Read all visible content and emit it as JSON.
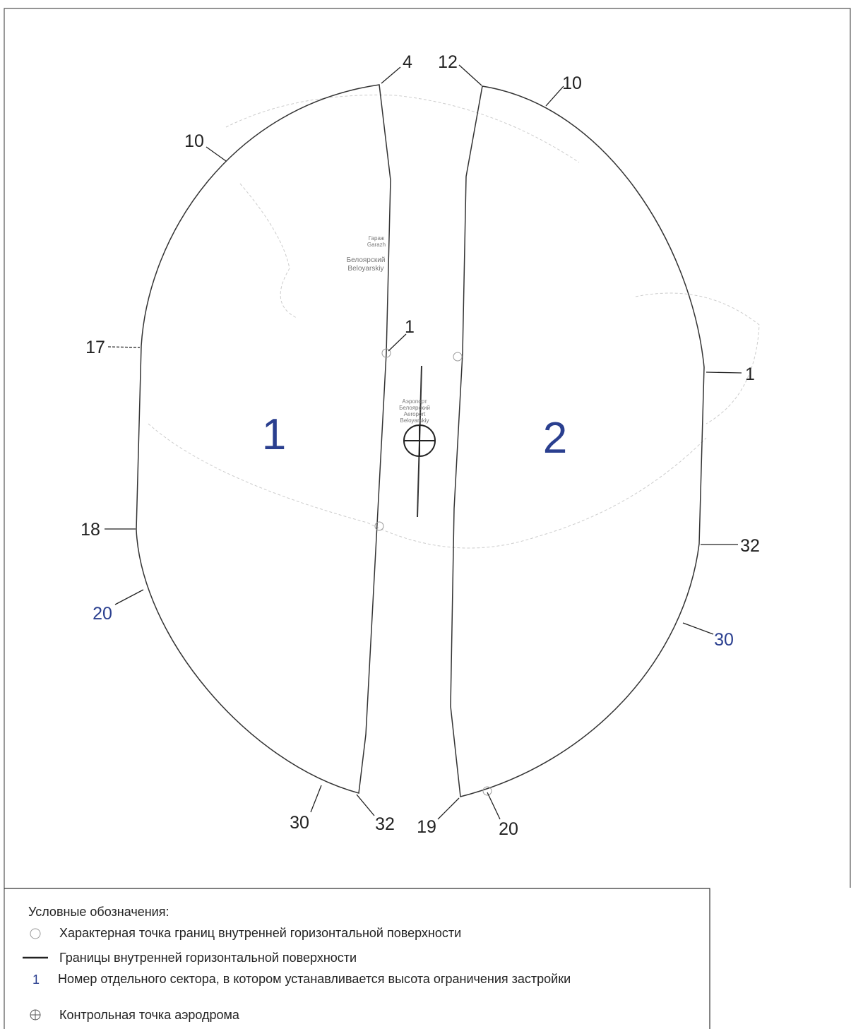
{
  "sectors": [
    {
      "label": "1"
    },
    {
      "label": "2"
    }
  ],
  "points": [
    {
      "label": "4"
    },
    {
      "label": "12"
    },
    {
      "label": "10"
    },
    {
      "label": "10"
    },
    {
      "label": "17"
    },
    {
      "label": "1"
    },
    {
      "label": "1"
    },
    {
      "label": "18"
    },
    {
      "label": "32"
    },
    {
      "label": "20"
    },
    {
      "label": "30"
    },
    {
      "label": "30"
    },
    {
      "label": "32"
    },
    {
      "label": "19"
    },
    {
      "label": "20"
    }
  ],
  "map_labels": [
    "Гараж",
    "Garazh",
    "Белоярский",
    "Beloyarskiy",
    "Аэропорт",
    "Белоярский",
    "Aeroport",
    "Beloyarskiy"
  ],
  "legend": {
    "title": "Условные обозначения:",
    "items": [
      {
        "text": "Характерная точка границ внутренней горизонтальной поверхности"
      },
      {
        "text": "Границы внутренней горизонтальной поверхности"
      },
      {
        "marker": "1",
        "text": "Номер отдельного сектора, в котором устанавливается высота ограничения застройки"
      },
      {
        "text": "Контрольная точка аэродрома"
      }
    ]
  }
}
